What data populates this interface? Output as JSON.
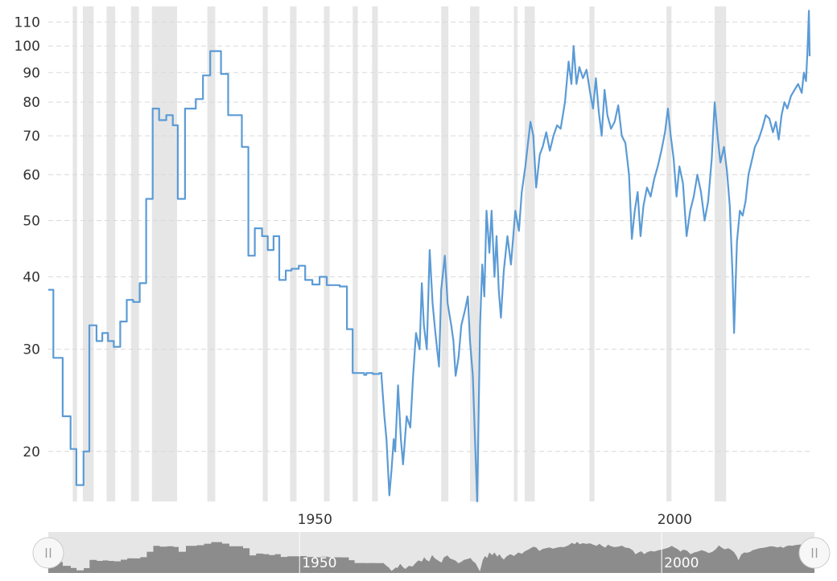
{
  "chart_data": {
    "type": "line",
    "title": "",
    "xlabel": "",
    "ylabel": "",
    "y_scale": "log",
    "xlim": [
      1915.3,
      2021.1
    ],
    "ylim": [
      16.4,
      117
    ],
    "grid": true,
    "x_ticks": [
      1950,
      2000
    ],
    "y_ticks": [
      20,
      30,
      40,
      50,
      60,
      70,
      80,
      90,
      100,
      110
    ],
    "line_color": "#5b9bd5",
    "recession_color": "#e6e6e6",
    "recessions": [
      [
        1918.7,
        1919.3
      ],
      [
        1920.1,
        1921.6
      ],
      [
        1923.4,
        1924.6
      ],
      [
        1926.8,
        1927.9
      ],
      [
        1929.7,
        1933.2
      ],
      [
        1937.4,
        1938.5
      ],
      [
        1945.1,
        1945.8
      ],
      [
        1948.9,
        1949.8
      ],
      [
        1953.6,
        1954.4
      ],
      [
        1957.6,
        1958.3
      ],
      [
        1960.3,
        1961.1
      ],
      [
        1969.9,
        1970.9
      ],
      [
        1973.9,
        1975.2
      ],
      [
        1980.0,
        1980.5
      ],
      [
        1981.5,
        1982.9
      ],
      [
        1990.5,
        1991.2
      ],
      [
        2001.2,
        2001.9
      ],
      [
        2007.9,
        2009.5
      ]
    ],
    "series": [
      {
        "step": true,
        "points": [
          [
            1915.3,
            38
          ],
          [
            1916,
            29
          ],
          [
            1917.3,
            23
          ],
          [
            1918.4,
            20.2
          ],
          [
            1919.2,
            17.5
          ],
          [
            1920.2,
            20
          ],
          [
            1921,
            33
          ],
          [
            1922,
            31
          ],
          [
            1922.8,
            32
          ],
          [
            1923.6,
            31
          ],
          [
            1924.4,
            30.3
          ],
          [
            1925.3,
            33.5
          ],
          [
            1926.2,
            36.5
          ],
          [
            1927.1,
            36.2
          ],
          [
            1928,
            39
          ],
          [
            1928.9,
            54.5
          ],
          [
            1929.8,
            78
          ],
          [
            1930.7,
            74.5
          ],
          [
            1931.7,
            76
          ],
          [
            1932.6,
            73
          ],
          [
            1933.3,
            54.5
          ],
          [
            1934.3,
            78
          ],
          [
            1935.8,
            81
          ],
          [
            1936.8,
            89
          ],
          [
            1937.8,
            98
          ],
          [
            1939.3,
            89.5
          ],
          [
            1940.3,
            76
          ],
          [
            1942.2,
            67
          ],
          [
            1943.1,
            43.5
          ],
          [
            1944,
            48.5
          ],
          [
            1945,
            47
          ],
          [
            1945.8,
            44.5
          ],
          [
            1946.6,
            47
          ],
          [
            1947.4,
            39.5
          ],
          [
            1948.3,
            41
          ],
          [
            1949.1,
            41.3
          ],
          [
            1950.1,
            41.8
          ],
          [
            1951,
            39.5
          ],
          [
            1952,
            38.8
          ],
          [
            1953,
            40
          ],
          [
            1954,
            38.7
          ],
          [
            1955.8,
            38.5
          ],
          [
            1956.8,
            32.5
          ],
          [
            1957.6,
            27.3
          ],
          [
            1959.2,
            27.1
          ],
          [
            1959.5,
            27.3
          ],
          [
            1960.4,
            27.2
          ],
          [
            1961.3,
            27.3
          ],
          [
            1961.6,
            27
          ]
        ]
      },
      {
        "step": false,
        "points": [
          [
            1961.6,
            27
          ],
          [
            1962,
            23
          ],
          [
            1962.3,
            21
          ],
          [
            1962.7,
            16.8
          ],
          [
            1963,
            18.6
          ],
          [
            1963.3,
            21
          ],
          [
            1963.5,
            20
          ],
          [
            1963.9,
            26
          ],
          [
            1964.3,
            21
          ],
          [
            1964.6,
            19
          ],
          [
            1965.1,
            23
          ],
          [
            1965.6,
            22
          ],
          [
            1966,
            27
          ],
          [
            1966.4,
            32
          ],
          [
            1966.9,
            30
          ],
          [
            1967.2,
            39
          ],
          [
            1967.5,
            33
          ],
          [
            1967.9,
            30
          ],
          [
            1968.3,
            44.5
          ],
          [
            1968.7,
            36
          ],
          [
            1969.1,
            32
          ],
          [
            1969.6,
            28
          ],
          [
            1969.9,
            38
          ],
          [
            1970.4,
            43.5
          ],
          [
            1970.8,
            36
          ],
          [
            1971.3,
            33
          ],
          [
            1971.6,
            31
          ],
          [
            1971.9,
            27
          ],
          [
            1972.3,
            29
          ],
          [
            1972.7,
            33
          ],
          [
            1973.2,
            35
          ],
          [
            1973.6,
            37
          ],
          [
            1973.9,
            31
          ],
          [
            1974.3,
            27
          ],
          [
            1974.6,
            21
          ],
          [
            1974.9,
            16.4
          ],
          [
            1975.3,
            33
          ],
          [
            1975.6,
            42
          ],
          [
            1975.9,
            37
          ],
          [
            1976.2,
            52
          ],
          [
            1976.6,
            44
          ],
          [
            1976.9,
            52
          ],
          [
            1977.3,
            40
          ],
          [
            1977.6,
            47
          ],
          [
            1977.9,
            38
          ],
          [
            1978.2,
            34
          ],
          [
            1978.6,
            41
          ],
          [
            1979.1,
            47
          ],
          [
            1979.6,
            42
          ],
          [
            1980.2,
            52
          ],
          [
            1980.7,
            48
          ],
          [
            1981.1,
            56
          ],
          [
            1981.6,
            62
          ],
          [
            1981.9,
            67
          ],
          [
            1982.3,
            74
          ],
          [
            1982.7,
            70
          ],
          [
            1983.1,
            57
          ],
          [
            1983.6,
            65
          ],
          [
            1984,
            67
          ],
          [
            1984.5,
            71
          ],
          [
            1985,
            66
          ],
          [
            1985.5,
            70
          ],
          [
            1986,
            73
          ],
          [
            1986.5,
            72
          ],
          [
            1987.1,
            80
          ],
          [
            1987.6,
            94
          ],
          [
            1988,
            86
          ],
          [
            1988.3,
            100
          ],
          [
            1988.7,
            86
          ],
          [
            1989.1,
            92
          ],
          [
            1989.6,
            88
          ],
          [
            1990.1,
            91
          ],
          [
            1990.6,
            83
          ],
          [
            1991,
            78
          ],
          [
            1991.4,
            88
          ],
          [
            1991.8,
            77
          ],
          [
            1992.2,
            70
          ],
          [
            1992.6,
            84
          ],
          [
            1993,
            76
          ],
          [
            1993.5,
            72
          ],
          [
            1994,
            74
          ],
          [
            1994.5,
            79
          ],
          [
            1995,
            70
          ],
          [
            1995.5,
            68
          ],
          [
            1996,
            60
          ],
          [
            1996.4,
            46.5
          ],
          [
            1996.8,
            52
          ],
          [
            1997.2,
            56
          ],
          [
            1997.6,
            47
          ],
          [
            1998,
            53
          ],
          [
            1998.5,
            57
          ],
          [
            1999,
            55
          ],
          [
            1999.5,
            59
          ],
          [
            2000,
            62
          ],
          [
            2000.5,
            66
          ],
          [
            2001,
            71
          ],
          [
            2001.4,
            78
          ],
          [
            2001.8,
            70
          ],
          [
            2002.2,
            64
          ],
          [
            2002.6,
            55
          ],
          [
            2003,
            62
          ],
          [
            2003.5,
            58
          ],
          [
            2004,
            47
          ],
          [
            2004.5,
            52
          ],
          [
            2005,
            55
          ],
          [
            2005.5,
            60
          ],
          [
            2006,
            56
          ],
          [
            2006.5,
            50
          ],
          [
            2007,
            54
          ],
          [
            2007.5,
            64
          ],
          [
            2007.9,
            80
          ],
          [
            2008.3,
            70
          ],
          [
            2008.7,
            63
          ],
          [
            2009.2,
            67
          ],
          [
            2009.6,
            61
          ],
          [
            2010,
            53
          ],
          [
            2010.4,
            40
          ],
          [
            2010.6,
            32
          ],
          [
            2011,
            46
          ],
          [
            2011.4,
            52
          ],
          [
            2011.8,
            51
          ],
          [
            2012.2,
            54
          ],
          [
            2012.6,
            60
          ],
          [
            2013,
            63
          ],
          [
            2013.5,
            67
          ],
          [
            2014,
            69
          ],
          [
            2014.5,
            72
          ],
          [
            2015,
            76
          ],
          [
            2015.5,
            75
          ],
          [
            2016,
            71
          ],
          [
            2016.4,
            74
          ],
          [
            2016.8,
            69
          ],
          [
            2017.2,
            76
          ],
          [
            2017.6,
            80
          ],
          [
            2018,
            78
          ],
          [
            2018.5,
            82
          ],
          [
            2019,
            84
          ],
          [
            2019.5,
            86
          ],
          [
            2020,
            83
          ],
          [
            2020.3,
            90
          ],
          [
            2020.6,
            87
          ],
          [
            2020.8,
            98
          ],
          [
            2021,
            115
          ],
          [
            2021.1,
            96
          ]
        ]
      }
    ]
  },
  "navigator": {
    "labels": [
      "1950",
      "2000"
    ],
    "label_years": [
      1950,
      2000
    ],
    "range": [
      1915.3,
      2021.1
    ],
    "left_handle_icon": "drag-grip-icon",
    "right_handle_icon": "drag-grip-icon"
  }
}
